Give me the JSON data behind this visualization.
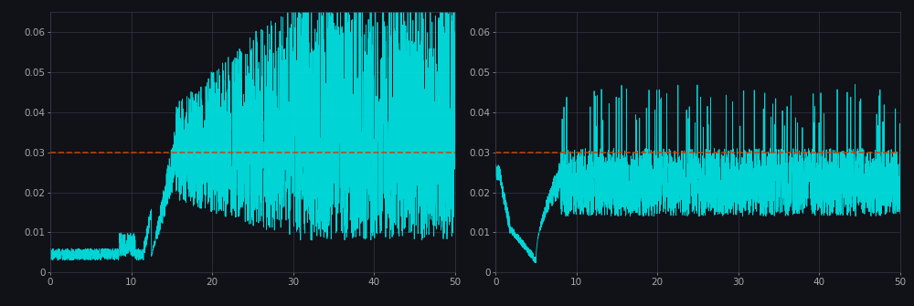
{
  "bg_color": "#111118",
  "line_color": "#00e0e0",
  "ref_line_color": "#cc4400",
  "ref_line_y": 0.03,
  "grid_color": "#3a3a4a",
  "text_color": "#aaaaaa",
  "ylim": [
    0,
    0.065
  ],
  "xlim": [
    0,
    50
  ],
  "yticks": [
    0,
    0.01,
    0.02,
    0.03,
    0.04,
    0.05,
    0.06
  ],
  "xticks": [
    0,
    10,
    20,
    30,
    40,
    50
  ],
  "n_points": 3000
}
